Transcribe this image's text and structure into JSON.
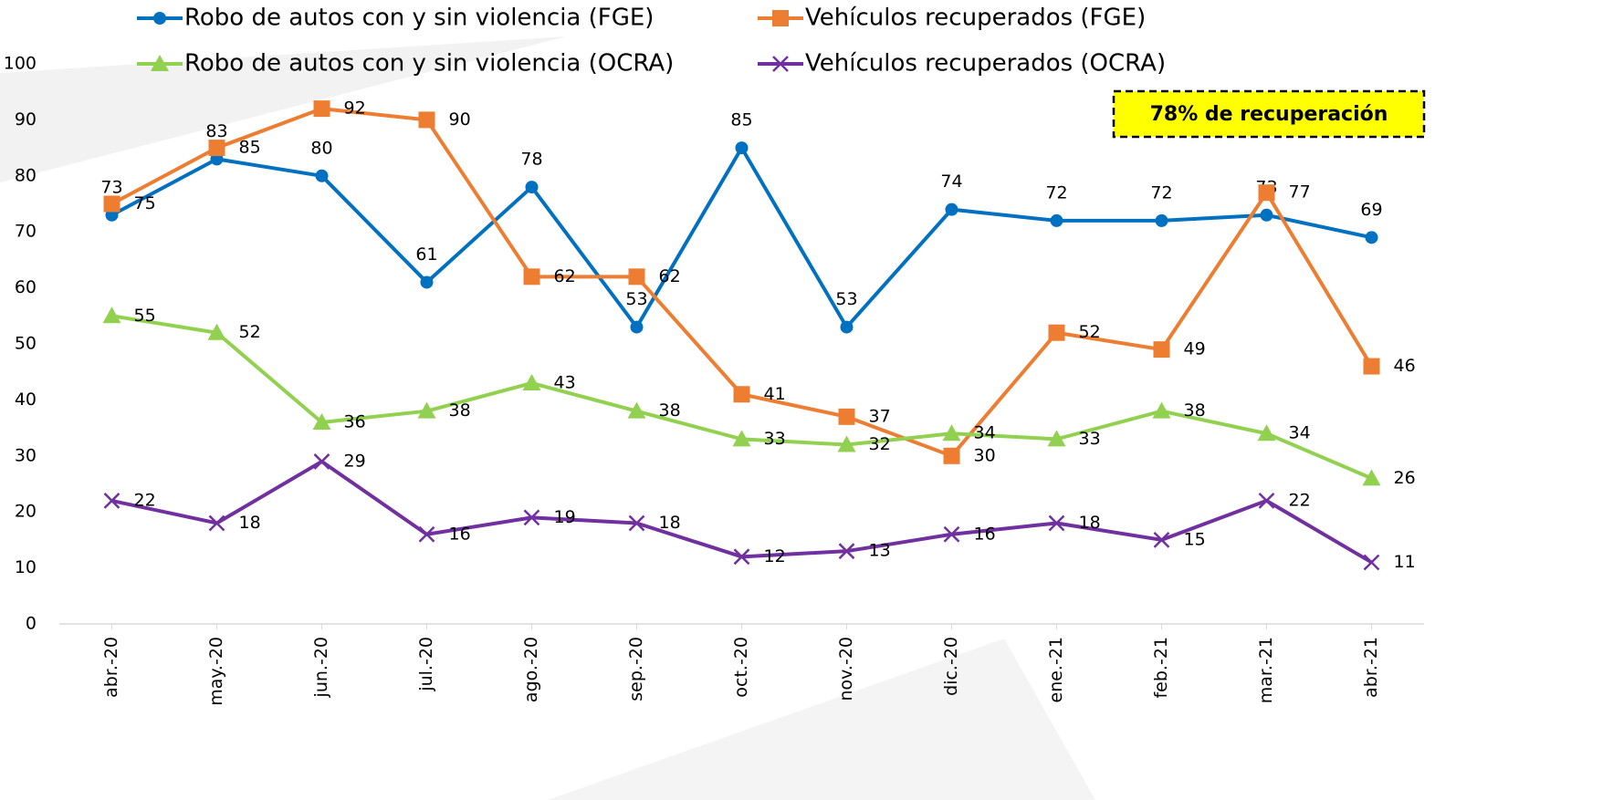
{
  "chart_data": {
    "type": "line",
    "categories": [
      "abr.-20",
      "may.-20",
      "jun.-20",
      "jul.-20",
      "ago.-20",
      "sep.-20",
      "oct.-20",
      "nov.-20",
      "dic.-20",
      "ene.-21",
      "feb.-21",
      "mar.-21",
      "abr.-21"
    ],
    "series": [
      {
        "name": "Robo de autos con y sin violencia (FGE)",
        "color": "#0070c0",
        "marker": "circle",
        "values": [
          73,
          83,
          80,
          61,
          78,
          53,
          85,
          53,
          74,
          72,
          72,
          73,
          69
        ]
      },
      {
        "name": "Vehículos recuperados (FGE)",
        "color": "#ed7d31",
        "marker": "square",
        "values": [
          75,
          85,
          92,
          90,
          62,
          62,
          41,
          37,
          30,
          52,
          49,
          77,
          46
        ]
      },
      {
        "name": "Robo de autos con y sin violencia (OCRA)",
        "color": "#92d050",
        "marker": "triangle",
        "values": [
          55,
          52,
          36,
          38,
          43,
          38,
          33,
          32,
          34,
          33,
          38,
          34,
          26
        ]
      },
      {
        "name": "Vehículos recuperados (OCRA)",
        "color": "#7030a0",
        "marker": "x",
        "values": [
          22,
          18,
          29,
          16,
          19,
          18,
          12,
          13,
          16,
          18,
          15,
          22,
          11
        ]
      }
    ],
    "ylim": [
      0,
      100
    ],
    "yticks": [
      0,
      10,
      20,
      30,
      40,
      50,
      60,
      70,
      80,
      90,
      100
    ],
    "grid": false,
    "annotation": "78% de recuperación"
  }
}
